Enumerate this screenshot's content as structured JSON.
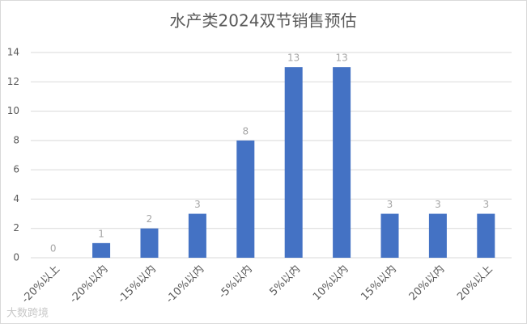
{
  "chart_data": {
    "type": "bar",
    "title": "水产类2024双节销售预估",
    "categories": [
      "-20%以上",
      "-20%以内",
      "-15%以内",
      "-10%以内",
      "-5%以内",
      "5%以内",
      "10%以内",
      "15%以内",
      "20%以内",
      "20%以上"
    ],
    "values": [
      0,
      1,
      2,
      3,
      8,
      13,
      13,
      3,
      3,
      3
    ],
    "color": "#4472c4",
    "ylim": [
      0,
      14
    ],
    "yticks": [
      0,
      2,
      4,
      6,
      8,
      10,
      12,
      14
    ],
    "grid": true
  },
  "watermark": "大数跨境"
}
